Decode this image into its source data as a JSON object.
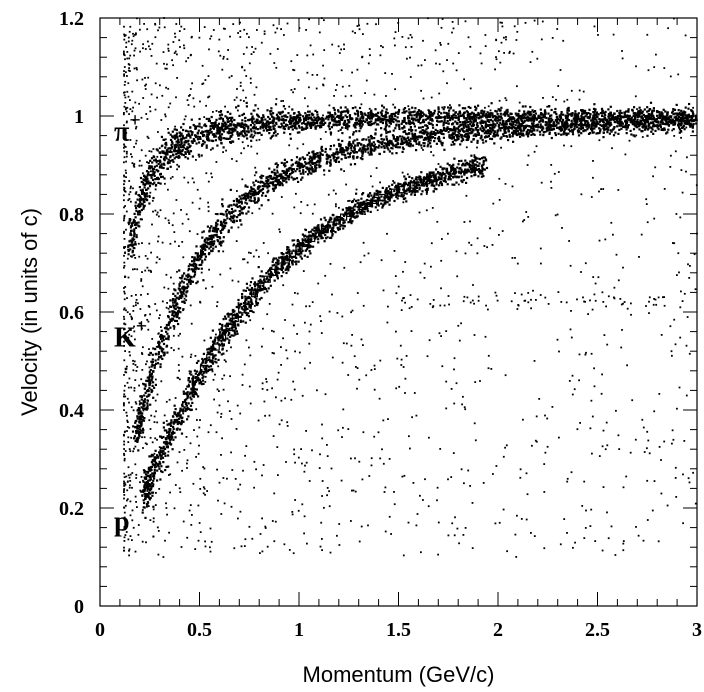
{
  "chart_data": {
    "type": "scatter",
    "title": "",
    "xlabel": "Momentum   (GeV/c)",
    "ylabel": "Velocity  (in units of c)",
    "xlim": [
      0,
      3
    ],
    "ylim": [
      0,
      1.2
    ],
    "x_ticks": [
      "0",
      "0.5",
      "1",
      "1.5",
      "2",
      "2.5",
      "3"
    ],
    "y_ticks": [
      "0",
      "0.2",
      "0.4",
      "0.6",
      "0.8",
      "1",
      "1.2"
    ],
    "grid": false,
    "legend": "none",
    "annotations": [
      {
        "text": "π",
        "sup": "+",
        "particle": "pion",
        "x": 0.03,
        "y": 0.97
      },
      {
        "text": "K",
        "sup": "+",
        "particle": "kaon",
        "x": 0.03,
        "y": 0.55
      },
      {
        "text": "p",
        "sup": "",
        "particle": "proton",
        "x": 0.03,
        "y": 0.175
      }
    ],
    "series": [
      {
        "particle": "pion",
        "mass_GeV": 0.1396,
        "x_range": [
          0.15,
          3.0
        ],
        "color": "#000000"
      },
      {
        "particle": "kaon",
        "mass_GeV": 0.4937,
        "x_range": [
          0.18,
          3.0
        ],
        "color": "#000000"
      },
      {
        "particle": "proton",
        "mass_GeV": 0.9383,
        "x_range": [
          0.22,
          1.95
        ],
        "color": "#000000"
      }
    ],
    "colors": {
      "axis": "#000000",
      "points": "#000000",
      "background": "#ffffff"
    }
  }
}
